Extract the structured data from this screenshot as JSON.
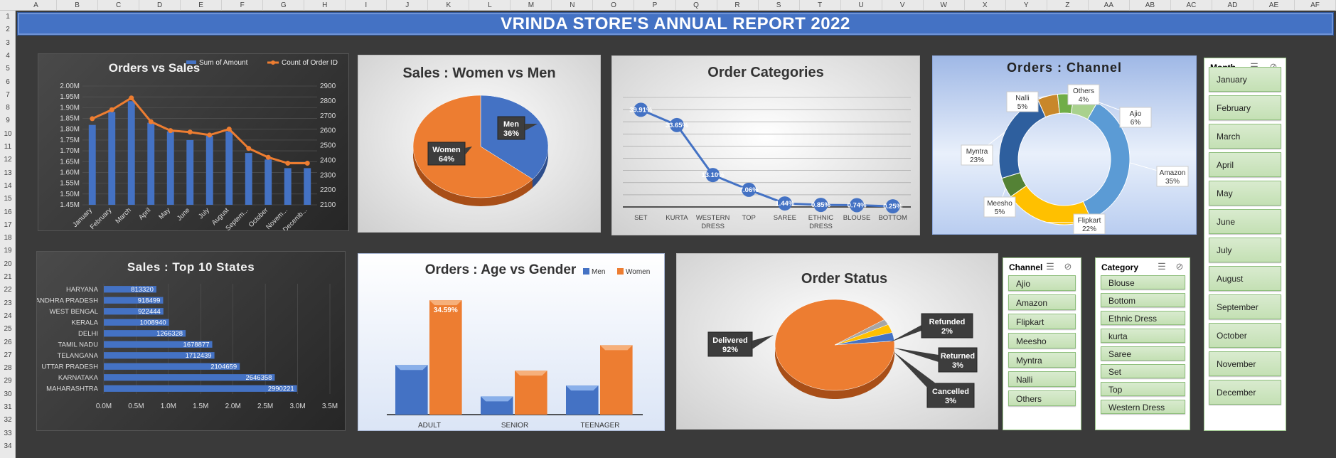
{
  "sheet": {
    "columns": [
      "A",
      "B",
      "C",
      "D",
      "E",
      "F",
      "G",
      "H",
      "I",
      "J",
      "K",
      "L",
      "M",
      "N",
      "O",
      "P",
      "Q",
      "R",
      "S",
      "T",
      "U",
      "V",
      "W",
      "X",
      "Y",
      "Z",
      "AA",
      "AB",
      "AC",
      "AD",
      "AE",
      "AF"
    ],
    "rows": [
      "1",
      "2",
      "3",
      "4",
      "5",
      "6",
      "7",
      "8",
      "9",
      "10",
      "11",
      "12",
      "13",
      "14",
      "15",
      "16",
      "17",
      "18",
      "19",
      "20",
      "21",
      "22",
      "23",
      "24",
      "25",
      "26",
      "27",
      "28",
      "29",
      "30",
      "31",
      "32",
      "33",
      "34"
    ]
  },
  "banner": {
    "title": "VRINDA STORE'S ANNUAL REPORT 2022"
  },
  "colors": {
    "blue": "#4472c4",
    "orange": "#ed7d31",
    "yellow": "#ffc000",
    "green": "#70ad47",
    "slicer": "#c6e0b4"
  },
  "slicers": {
    "month": {
      "header": "Month",
      "items": [
        "January",
        "February",
        "March",
        "April",
        "May",
        "June",
        "July",
        "August",
        "September",
        "October",
        "November",
        "December"
      ]
    },
    "channel": {
      "header": "Channel",
      "items": [
        "Ajio",
        "Amazon",
        "Flipkart",
        "Meesho",
        "Myntra",
        "Nalli",
        "Others"
      ]
    },
    "category": {
      "header": "Category",
      "items": [
        "Blouse",
        "Bottom",
        "Ethnic Dress",
        "kurta",
        "Saree",
        "Set",
        "Top",
        "Western Dress"
      ]
    },
    "icons": [
      "multi-select-icon",
      "clear-filter-icon"
    ]
  },
  "chart_data": [
    {
      "id": "orders_sales",
      "type": "bar",
      "title": "Orders vs Sales",
      "categories": [
        "January",
        "February",
        "March",
        "April",
        "May",
        "June",
        "July",
        "August",
        "Septem...",
        "October",
        "Novem...",
        "Decemb..."
      ],
      "series": [
        {
          "name": "Sum of Amount",
          "type": "bar",
          "axis": "left",
          "values": [
            1.82,
            1.88,
            1.93,
            1.83,
            1.79,
            1.75,
            1.77,
            1.79,
            1.69,
            1.66,
            1.62,
            1.62
          ]
        },
        {
          "name": "Count of Order ID",
          "type": "line",
          "axis": "right",
          "values": [
            2680,
            2740,
            2820,
            2660,
            2600,
            2590,
            2570,
            2610,
            2480,
            2420,
            2380,
            2380
          ]
        }
      ],
      "y_left": {
        "min": 1.45,
        "max": 2.0,
        "ticks": [
          "1.45M",
          "1.50M",
          "1.55M",
          "1.60M",
          "1.65M",
          "1.70M",
          "1.75M",
          "1.80M",
          "1.85M",
          "1.90M",
          "1.95M",
          "2.00M"
        ]
      },
      "y_right": {
        "min": 2100,
        "max": 2900,
        "ticks": [
          "2100",
          "2200",
          "2300",
          "2400",
          "2500",
          "2600",
          "2700",
          "2800",
          "2900"
        ]
      },
      "legend": "top-right"
    },
    {
      "id": "sales_gender",
      "type": "pie",
      "title": "Sales : Women vs Men",
      "slices": [
        {
          "label": "Men",
          "value": 36,
          "text": "36%"
        },
        {
          "label": "Women",
          "value": 64,
          "text": "64%"
        }
      ]
    },
    {
      "id": "order_categories",
      "type": "line",
      "title": "Order Categories",
      "categories": [
        "SET",
        "KURTA",
        "WESTERN DRESS",
        "TOP",
        "SAREE",
        "ETHNIC DRESS",
        "BLOUSE",
        "BOTTOM"
      ],
      "values": [
        39.91,
        33.65,
        13.1,
        7.06,
        1.44,
        0.85,
        0.74,
        0.25
      ],
      "labels": [
        "39.91%",
        "33.65%",
        "13.10%",
        "7.06%",
        "1.44%",
        "0.85%",
        "0.74%",
        "0.25%"
      ],
      "ylim": [
        0,
        45
      ]
    },
    {
      "id": "orders_channel",
      "type": "pie",
      "subtype": "doughnut",
      "title": "Orders : Channel",
      "slices": [
        {
          "label": "Amazon",
          "value": 35,
          "text": "35%"
        },
        {
          "label": "Flipkart",
          "value": 22,
          "text": "22%"
        },
        {
          "label": "Meesho",
          "value": 5,
          "text": "5%"
        },
        {
          "label": "Myntra",
          "value": 23,
          "text": "23%"
        },
        {
          "label": "Nalli",
          "value": 5,
          "text": "5%"
        },
        {
          "label": "Others",
          "value": 4,
          "text": "4%"
        },
        {
          "label": "Ajio",
          "value": 6,
          "text": "6%"
        }
      ]
    },
    {
      "id": "top_states",
      "type": "bar",
      "orientation": "horizontal",
      "title": "Sales : Top 10 States",
      "categories": [
        "HARYANA",
        "ANDHRA PRADESH",
        "WEST BENGAL",
        "KERALA",
        "DELHI",
        "TAMIL NADU",
        "TELANGANA",
        "UTTAR PRADESH",
        "KARNATAKA",
        "MAHARASHTRA"
      ],
      "values": [
        813320,
        918499,
        922444,
        1008940,
        1266328,
        1678877,
        1712439,
        2104659,
        2646358,
        2990221
      ],
      "labels": [
        "813320",
        "918499",
        "922444",
        "1008940",
        "1266328",
        "1678877",
        "1712439",
        "2104659",
        "2646358",
        "2990221"
      ],
      "xlim": [
        0,
        3500000
      ],
      "xticks": [
        "0.0M",
        "0.5M",
        "1.0M",
        "1.5M",
        "2.0M",
        "2.5M",
        "3.0M",
        "3.5M"
      ]
    },
    {
      "id": "age_gender",
      "type": "bar",
      "title": "Orders : Age vs Gender",
      "categories": [
        "ADULT",
        "SENIOR",
        "TEENAGER"
      ],
      "series": [
        {
          "name": "Men",
          "values": [
            15.0,
            5.5,
            8.8
          ]
        },
        {
          "name": "Women",
          "values": [
            34.59,
            13.3,
            21.0
          ]
        }
      ],
      "data_labels": {
        "Women-ADULT": "34.59%"
      },
      "legend": "top-right",
      "ylim": [
        0,
        40
      ]
    },
    {
      "id": "order_status",
      "type": "pie",
      "title": "Order Status",
      "slices": [
        {
          "label": "Delivered",
          "value": 92,
          "text": "92%"
        },
        {
          "label": "Refunded",
          "value": 2,
          "text": "2%"
        },
        {
          "label": "Returned",
          "value": 3,
          "text": "3%"
        },
        {
          "label": "Cancelled",
          "value": 3,
          "text": "3%"
        }
      ]
    }
  ]
}
